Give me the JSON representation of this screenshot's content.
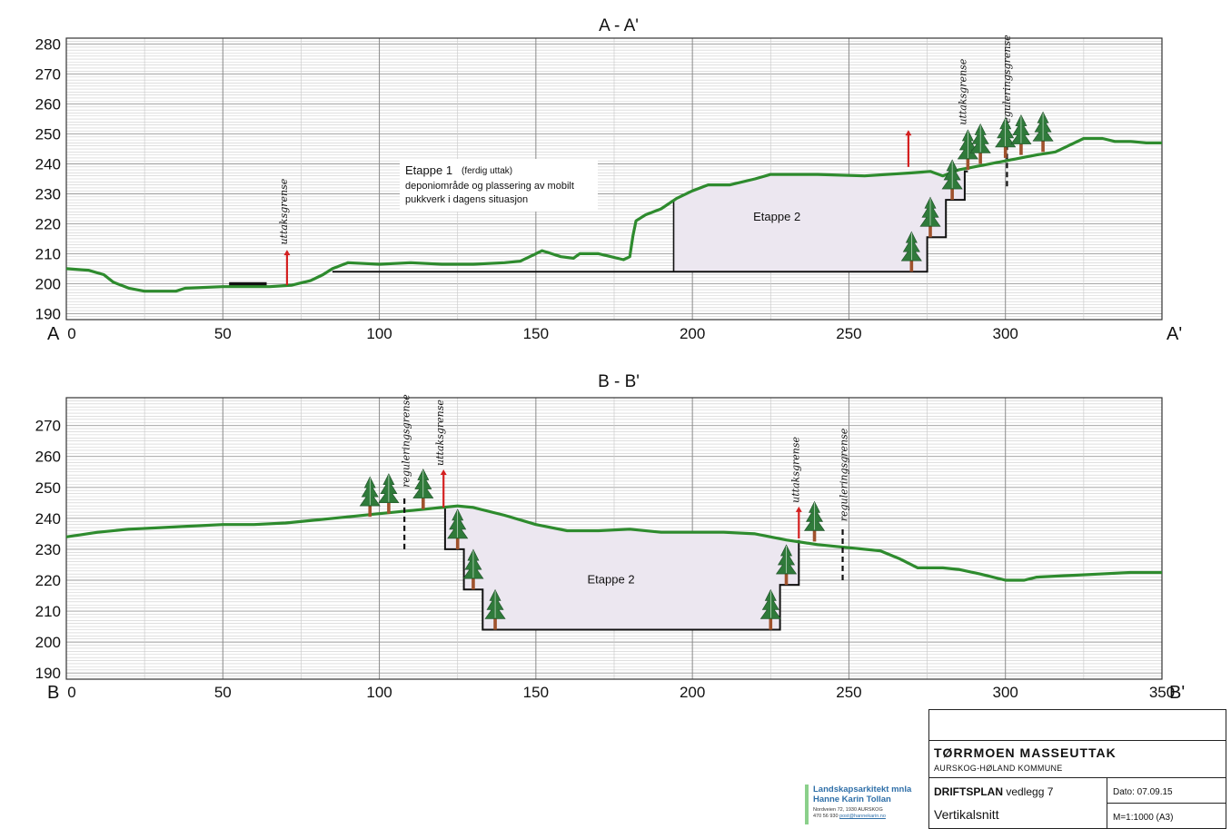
{
  "sections": [
    {
      "id": "a",
      "title": "A - A'",
      "start_label": "A",
      "end_label": "A'",
      "x_range": [
        0,
        350
      ],
      "y_range": [
        188,
        282
      ],
      "x_ticks": [
        0,
        50,
        100,
        150,
        200,
        250,
        300
      ],
      "y_ticks": [
        190,
        200,
        210,
        220,
        230,
        240,
        250,
        260,
        270,
        280
      ],
      "terrain": [
        [
          0,
          205
        ],
        [
          7,
          204.5
        ],
        [
          12,
          203
        ],
        [
          15,
          200.5
        ],
        [
          20,
          198.5
        ],
        [
          25,
          197.5
        ],
        [
          35,
          197.5
        ],
        [
          38,
          198.5
        ],
        [
          50,
          199
        ],
        [
          65,
          199
        ],
        [
          72,
          199.5
        ],
        [
          78,
          201
        ],
        [
          82,
          203
        ],
        [
          85,
          205
        ],
        [
          90,
          207
        ],
        [
          100,
          206.5
        ],
        [
          110,
          207
        ],
        [
          120,
          206.5
        ],
        [
          130,
          206.5
        ],
        [
          140,
          207
        ],
        [
          145,
          207.5
        ],
        [
          150,
          210
        ],
        [
          152,
          211
        ],
        [
          155,
          210
        ],
        [
          158,
          209
        ],
        [
          162,
          208.5
        ],
        [
          164,
          210
        ],
        [
          170,
          210
        ],
        [
          174,
          209
        ],
        [
          178,
          208
        ],
        [
          180,
          209
        ],
        [
          181,
          216
        ],
        [
          182,
          221
        ],
        [
          185,
          223
        ],
        [
          190,
          225
        ],
        [
          195,
          228.5
        ],
        [
          200,
          231
        ],
        [
          205,
          233
        ],
        [
          212,
          233
        ],
        [
          220,
          235
        ],
        [
          225,
          236.5
        ],
        [
          240,
          236.5
        ],
        [
          255,
          236
        ],
        [
          270,
          237
        ],
        [
          276,
          237.5
        ],
        [
          280,
          236
        ],
        [
          285,
          238
        ],
        [
          290,
          239
        ],
        [
          300,
          241
        ],
        [
          310,
          243
        ],
        [
          316,
          244
        ],
        [
          320,
          246
        ],
        [
          325,
          248.5
        ],
        [
          331,
          248.5
        ],
        [
          335,
          247.5
        ],
        [
          340,
          247.5
        ],
        [
          345,
          247
        ],
        [
          350,
          247
        ]
      ],
      "excavation": [
        [
          85,
          204
        ],
        [
          275,
          204
        ],
        [
          275,
          215.5
        ],
        [
          281,
          215.5
        ],
        [
          281,
          228
        ],
        [
          287,
          228
        ],
        [
          287,
          237.5
        ],
        [
          288,
          237.5
        ]
      ],
      "divider": [
        [
          194,
          204
        ],
        [
          194,
          227.5
        ]
      ],
      "fill_poly": [
        [
          194,
          204
        ],
        [
          275,
          204
        ],
        [
          275,
          215.5
        ],
        [
          281,
          215.5
        ],
        [
          281,
          228
        ],
        [
          287,
          228
        ],
        [
          287,
          237.5
        ],
        [
          276,
          237.5
        ],
        [
          270,
          237
        ],
        [
          255,
          236
        ],
        [
          240,
          236.5
        ],
        [
          225,
          236.5
        ],
        [
          220,
          235
        ],
        [
          212,
          233
        ],
        [
          205,
          233
        ],
        [
          200,
          231
        ],
        [
          195,
          228.5
        ],
        [
          194,
          227.5
        ]
      ],
      "building": [
        [
          52,
          199
        ],
        [
          64,
          200.5
        ]
      ],
      "red_markers": [
        {
          "x": 70.5,
          "y_bottom": 199.5,
          "y_top": 211
        },
        {
          "x": 269,
          "y_bottom": 239,
          "y_top": 251
        }
      ],
      "dashed_markers": [
        {
          "x": 300.5,
          "y_bottom": 232.5,
          "y_top": 250
        }
      ],
      "vertical_labels": [
        {
          "text": "uttaksgrense",
          "x": 70.5,
          "y_base": 213
        },
        {
          "text": "uttaksgrense",
          "x": 287.5,
          "y_base": 253
        },
        {
          "text": "reguleringsgrense",
          "x": 301.5,
          "y_base": 252
        }
      ],
      "trees": [
        [
          270,
          204
        ],
        [
          276,
          215.5
        ],
        [
          283,
          228
        ],
        [
          288,
          238
        ],
        [
          292,
          240
        ],
        [
          300,
          242
        ],
        [
          305,
          243
        ],
        [
          312,
          244
        ]
      ],
      "etappe_label": {
        "text": "Etappe 2",
        "x": 227,
        "y": 221
      },
      "note": {
        "head": "Etappe 1",
        "head_suffix": "(ferdig uttak)",
        "lines": [
          "deponiområde og plassering av mobilt",
          "pukkverk i dagens situasjon"
        ]
      }
    },
    {
      "id": "b",
      "title": "B - B'",
      "start_label": "B",
      "end_label": "B'",
      "x_range": [
        0,
        350
      ],
      "y_range": [
        188,
        279
      ],
      "x_ticks": [
        0,
        50,
        100,
        150,
        200,
        250,
        300,
        350
      ],
      "y_ticks": [
        190,
        200,
        210,
        220,
        230,
        240,
        250,
        260,
        270
      ],
      "terrain": [
        [
          0,
          234
        ],
        [
          10,
          235.5
        ],
        [
          20,
          236.5
        ],
        [
          30,
          237
        ],
        [
          40,
          237.5
        ],
        [
          50,
          238
        ],
        [
          60,
          238
        ],
        [
          70,
          238.5
        ],
        [
          80,
          239.5
        ],
        [
          90,
          240.5
        ],
        [
          100,
          241.5
        ],
        [
          110,
          242.5
        ],
        [
          120,
          243.5
        ],
        [
          125,
          244
        ],
        [
          130,
          243.5
        ],
        [
          140,
          241
        ],
        [
          150,
          238
        ],
        [
          160,
          236
        ],
        [
          170,
          236
        ],
        [
          180,
          236.5
        ],
        [
          190,
          235.5
        ],
        [
          200,
          235.5
        ],
        [
          210,
          235.5
        ],
        [
          220,
          235
        ],
        [
          230,
          233
        ],
        [
          240,
          231.5
        ],
        [
          250,
          230.5
        ],
        [
          260,
          229.5
        ],
        [
          266,
          227
        ],
        [
          272,
          224
        ],
        [
          280,
          224
        ],
        [
          285,
          223.5
        ],
        [
          292,
          222
        ],
        [
          300,
          220
        ],
        [
          306,
          220
        ],
        [
          310,
          221
        ],
        [
          320,
          221.5
        ],
        [
          330,
          222
        ],
        [
          340,
          222.5
        ],
        [
          350,
          222.5
        ]
      ],
      "excavation": [
        [
          121,
          243.5
        ],
        [
          121,
          230
        ],
        [
          127,
          230
        ],
        [
          127,
          217
        ],
        [
          133,
          217
        ],
        [
          133,
          204
        ],
        [
          228,
          204
        ],
        [
          228,
          218.5
        ],
        [
          234,
          218.5
        ],
        [
          234,
          233
        ]
      ],
      "divider": [],
      "fill_poly": [
        [
          121,
          243.5
        ],
        [
          121,
          230
        ],
        [
          127,
          230
        ],
        [
          127,
          217
        ],
        [
          133,
          217
        ],
        [
          133,
          204
        ],
        [
          228,
          204
        ],
        [
          228,
          218.5
        ],
        [
          234,
          218.5
        ],
        [
          234,
          232.8
        ],
        [
          230,
          233
        ],
        [
          220,
          235
        ],
        [
          210,
          235.5
        ],
        [
          200,
          235.5
        ],
        [
          190,
          235.5
        ],
        [
          180,
          236.5
        ],
        [
          170,
          236
        ],
        [
          160,
          236
        ],
        [
          150,
          238
        ],
        [
          140,
          241
        ],
        [
          130,
          243.5
        ],
        [
          125,
          244
        ]
      ],
      "building": [],
      "red_markers": [
        {
          "x": 120.5,
          "y_bottom": 243.5,
          "y_top": 255.5
        },
        {
          "x": 234,
          "y_bottom": 233.5,
          "y_top": 243.5
        }
      ],
      "dashed_markers": [
        {
          "x": 108,
          "y_bottom": 230,
          "y_top": 247.5
        },
        {
          "x": 248,
          "y_bottom": 220,
          "y_top": 236.5
        }
      ],
      "vertical_labels": [
        {
          "text": "reguleringsgrense",
          "x": 109.5,
          "y_base": 250
        },
        {
          "text": "uttaksgrense",
          "x": 120.5,
          "y_base": 257
        },
        {
          "text": "uttaksgrense",
          "x": 234,
          "y_base": 245
        },
        {
          "text": "reguleringsgrense",
          "x": 249.5,
          "y_base": 239
        }
      ],
      "trees": [
        [
          97,
          240.5
        ],
        [
          103,
          241.5
        ],
        [
          114,
          243
        ],
        [
          125,
          230
        ],
        [
          130,
          217
        ],
        [
          137,
          204
        ],
        [
          225,
          204
        ],
        [
          230,
          218.5
        ],
        [
          239,
          232.5
        ]
      ],
      "etappe_label": {
        "text": "Etappe 2",
        "x": 174,
        "y": 219
      },
      "note": null
    }
  ],
  "title_block": {
    "project": "TØRRMOEN MASSEUTTAK",
    "municipality": "AURSKOG-HØLAND KOMMUNE",
    "plan_bold": "DRIFTSPLAN",
    "plan_rest": " vedlegg 7",
    "date": "Dato: 07.09.15",
    "sheet": "Vertikalsnitt",
    "scale": "M=1:1000 (A3)"
  },
  "firm": {
    "name_line1": "Landskapsarkitekt mnla",
    "name_line2": "Hanne Karin Tollan",
    "address": "Nordveien 72, 1930 AURSKOG",
    "phone": "470 56 930",
    "email": "post@hannekarin.no"
  },
  "colors": {
    "terrain": "#2e8b2e",
    "excavation": "#111111",
    "fill": "#ece7f0",
    "marker": "#d42020",
    "grid_major": "#9a9a9a",
    "grid_minor": "#cccccc",
    "tree_foliage": "#2f7a3a",
    "tree_trunk": "#a0522d"
  }
}
